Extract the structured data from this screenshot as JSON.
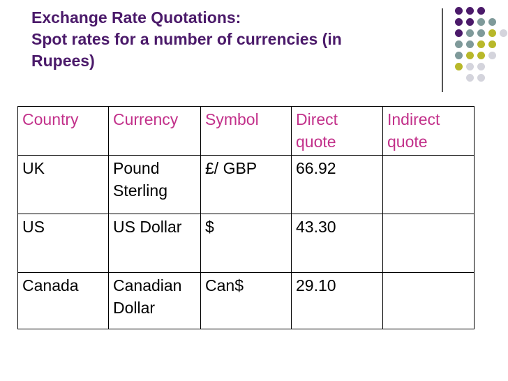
{
  "title": {
    "line1": "Exchange Rate Quotations:",
    "line2": "Spot rates for a number of currencies (in",
    "line3": "Rupees)"
  },
  "table": {
    "headers": [
      "Country",
      "Currency",
      "Symbol",
      "Direct quote",
      "Indirect quote"
    ],
    "rows": [
      [
        "UK",
        "Pound Sterling",
        "£/ GBP",
        "66.92",
        ""
      ],
      [
        "US",
        "US Dollar",
        "$",
        "43.30",
        ""
      ],
      [
        "Canada",
        "Canadian Dollar",
        "Can$",
        "29.10",
        ""
      ]
    ]
  },
  "decoration": {
    "dot_colors": [
      "#4b1a6a",
      "#7f9a9a",
      "#b8b82a",
      "#d4d4dc"
    ],
    "heading_color": "#4b1a6a",
    "header_text_color": "#c2308a"
  }
}
